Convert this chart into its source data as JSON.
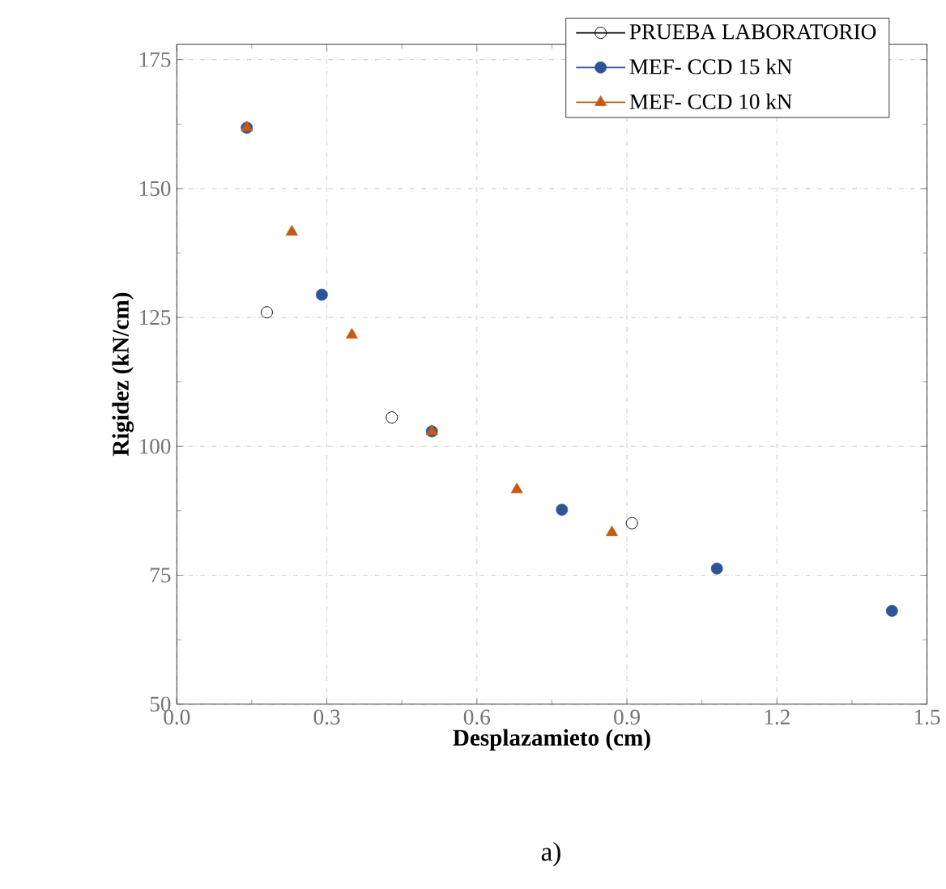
{
  "chart_data": {
    "type": "scatter",
    "xlabel": "Desplazamieto (cm)",
    "ylabel": "Rigidez (kN/cm)",
    "annotations": [
      "a)"
    ],
    "xlim": [
      0,
      1.5
    ],
    "ylim": [
      50,
      178
    ],
    "xticks": [
      {
        "value": 0,
        "label": "0.0"
      },
      0.3,
      0.6,
      0.9,
      1.2,
      1.5
    ],
    "yticks": [
      50,
      75,
      100,
      125,
      150,
      175
    ],
    "grid": true,
    "legend": "top right",
    "series": [
      {
        "name": "PRUEBA LABORATORIO",
        "color": "#000000",
        "marker": "circle",
        "x": [
          0.18,
          0.43,
          0.91
        ],
        "values": [
          126,
          105.6,
          85.1
        ]
      },
      {
        "name": "MEF- CCD 15 kN",
        "color": "#2e5597",
        "marker": "circle",
        "x": [
          0.14,
          0.29,
          0.51,
          0.77,
          1.08,
          1.43
        ],
        "values": [
          161.8,
          129.4,
          102.9,
          87.7,
          76.3,
          68.1
        ]
      },
      {
        "name": "MEF- CCD 10 kN",
        "color": "#c55a11",
        "marker": "triangle",
        "x": [
          0.14,
          0.23,
          0.35,
          0.51,
          0.68,
          0.87
        ],
        "values": [
          161.8,
          141.6,
          121.6,
          102.9,
          91.6,
          83.3
        ]
      }
    ]
  }
}
